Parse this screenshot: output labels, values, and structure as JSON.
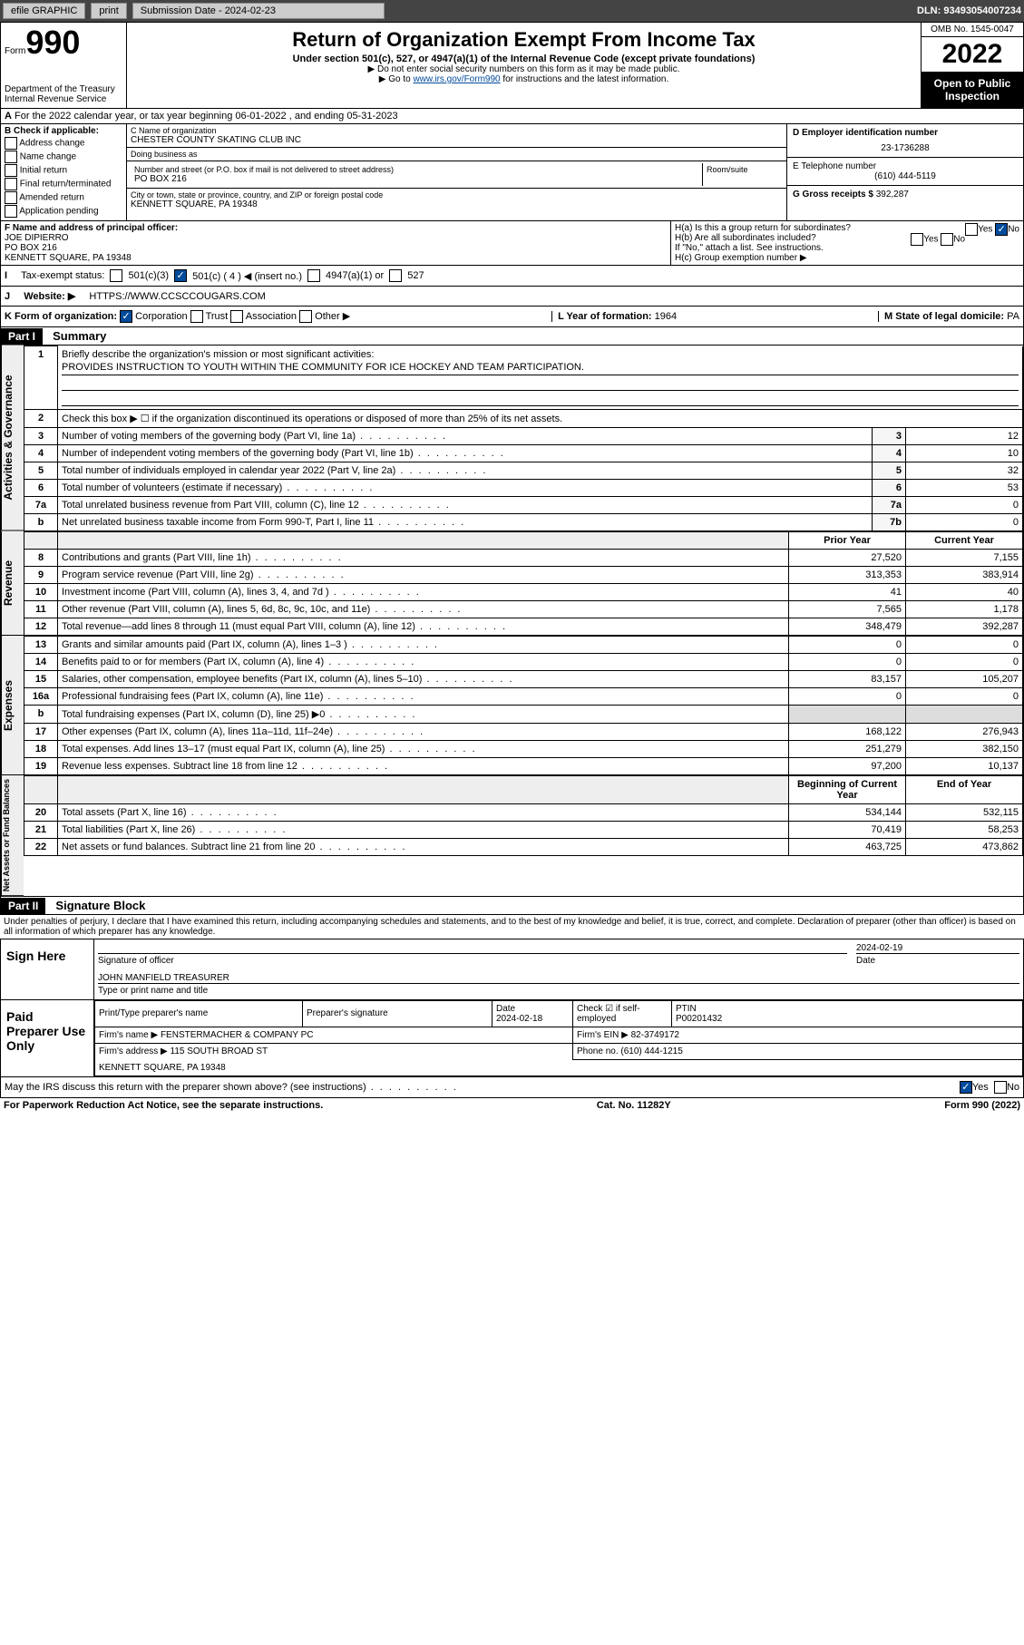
{
  "topbar": {
    "efile": "efile GRAPHIC",
    "print": "print",
    "sub_label": "Submission Date - 2024-02-23",
    "dln": "DLN: 93493054007234"
  },
  "header": {
    "form": "Form",
    "form_no": "990",
    "dept": "Department of the Treasury\nInternal Revenue Service",
    "title": "Return of Organization Exempt From Income Tax",
    "subtitle": "Under section 501(c), 527, or 4947(a)(1) of the Internal Revenue Code (except private foundations)",
    "note1": "▶ Do not enter social security numbers on this form as it may be made public.",
    "note2_pre": "▶ Go to ",
    "note2_link": "www.irs.gov/Form990",
    "note2_post": " for instructions and the latest information.",
    "omb": "OMB No. 1545-0047",
    "year": "2022",
    "open": "Open to Public Inspection"
  },
  "lineA": "For the 2022 calendar year, or tax year beginning 06-01-2022   , and ending 05-31-2023",
  "boxB": {
    "title": "B Check if applicable:",
    "items": [
      "Address change",
      "Name change",
      "Initial return",
      "Final return/terminated",
      "Amended return",
      "Application pending"
    ]
  },
  "boxC": {
    "name_label": "C Name of organization",
    "name": "CHESTER COUNTY SKATING CLUB INC",
    "dba_label": "Doing business as",
    "dba": "",
    "street_label": "Number and street (or P.O. box if mail is not delivered to street address)",
    "room_label": "Room/suite",
    "street": "PO BOX 216",
    "city_label": "City or town, state or province, country, and ZIP or foreign postal code",
    "city": "KENNETT SQUARE, PA  19348"
  },
  "boxD": {
    "label": "D Employer identification number",
    "value": "23-1736288"
  },
  "boxE": {
    "label": "E Telephone number",
    "value": "(610) 444-5119"
  },
  "boxG": {
    "label": "G Gross receipts $",
    "value": "392,287"
  },
  "boxF": {
    "label": "F Name and address of principal officer:",
    "name": "JOE DIPIERRO",
    "street": "PO BOX 216",
    "city": "KENNETT SQUARE, PA  19348"
  },
  "boxH": {
    "ha": "H(a)  Is this a group return for subordinates?",
    "hb": "H(b)  Are all subordinates included?",
    "hb_note": "If \"No,\" attach a list. See instructions.",
    "hc": "H(c)  Group exemption number ▶"
  },
  "yesno": {
    "yes": "Yes",
    "no": "No"
  },
  "boxI": {
    "label": "Tax-exempt status:",
    "opts": [
      "501(c)(3)",
      "501(c) ( 4 ) ◀ (insert no.)",
      "4947(a)(1) or",
      "527"
    ]
  },
  "boxJ": {
    "label": "Website: ▶",
    "value": "HTTPS://WWW.CCSCCOUGARS.COM"
  },
  "boxK": {
    "label": "K Form of organization:",
    "opts": [
      "Corporation",
      "Trust",
      "Association",
      "Other ▶"
    ]
  },
  "boxL": {
    "label": "L Year of formation:",
    "value": "1964"
  },
  "boxM": {
    "label": "M State of legal domicile:",
    "value": "PA"
  },
  "part1": {
    "head": "Part I",
    "title": "Summary",
    "line1_label": "Briefly describe the organization's mission or most significant activities:",
    "line1_value": "PROVIDES INSTRUCTION TO YOUTH WITHIN THE COMMUNITY FOR ICE HOCKEY AND TEAM PARTICIPATION.",
    "line2": "Check this box ▶ ☐  if the organization discontinued its operations or disposed of more than 25% of its net assets."
  },
  "sidetabs": {
    "gov": "Activities & Governance",
    "rev": "Revenue",
    "exp": "Expenses",
    "net": "Net Assets or Fund Balances"
  },
  "gov_rows": [
    {
      "n": "3",
      "label": "Number of voting members of the governing body (Part VI, line 1a)",
      "cell": "3",
      "val": "12"
    },
    {
      "n": "4",
      "label": "Number of independent voting members of the governing body (Part VI, line 1b)",
      "cell": "4",
      "val": "10"
    },
    {
      "n": "5",
      "label": "Total number of individuals employed in calendar year 2022 (Part V, line 2a)",
      "cell": "5",
      "val": "32"
    },
    {
      "n": "6",
      "label": "Total number of volunteers (estimate if necessary)",
      "cell": "6",
      "val": "53"
    },
    {
      "n": "7a",
      "label": "Total unrelated business revenue from Part VIII, column (C), line 12",
      "cell": "7a",
      "val": "0"
    },
    {
      "n": "b",
      "label": "Net unrelated business taxable income from Form 990-T, Part I, line 11",
      "cell": "7b",
      "val": "0"
    }
  ],
  "col_headers": {
    "prior": "Prior Year",
    "current": "Current Year",
    "beg": "Beginning of Current Year",
    "end": "End of Year"
  },
  "rev_rows": [
    {
      "n": "8",
      "label": "Contributions and grants (Part VIII, line 1h)",
      "prior": "27,520",
      "cur": "7,155"
    },
    {
      "n": "9",
      "label": "Program service revenue (Part VIII, line 2g)",
      "prior": "313,353",
      "cur": "383,914"
    },
    {
      "n": "10",
      "label": "Investment income (Part VIII, column (A), lines 3, 4, and 7d )",
      "prior": "41",
      "cur": "40"
    },
    {
      "n": "11",
      "label": "Other revenue (Part VIII, column (A), lines 5, 6d, 8c, 9c, 10c, and 11e)",
      "prior": "7,565",
      "cur": "1,178"
    },
    {
      "n": "12",
      "label": "Total revenue—add lines 8 through 11 (must equal Part VIII, column (A), line 12)",
      "prior": "348,479",
      "cur": "392,287"
    }
  ],
  "exp_rows": [
    {
      "n": "13",
      "label": "Grants and similar amounts paid (Part IX, column (A), lines 1–3 )",
      "prior": "0",
      "cur": "0"
    },
    {
      "n": "14",
      "label": "Benefits paid to or for members (Part IX, column (A), line 4)",
      "prior": "0",
      "cur": "0"
    },
    {
      "n": "15",
      "label": "Salaries, other compensation, employee benefits (Part IX, column (A), lines 5–10)",
      "prior": "83,157",
      "cur": "105,207"
    },
    {
      "n": "16a",
      "label": "Professional fundraising fees (Part IX, column (A), line 11e)",
      "prior": "0",
      "cur": "0"
    },
    {
      "n": "b",
      "label": "Total fundraising expenses (Part IX, column (D), line 25) ▶0",
      "prior": "",
      "cur": ""
    },
    {
      "n": "17",
      "label": "Other expenses (Part IX, column (A), lines 11a–11d, 11f–24e)",
      "prior": "168,122",
      "cur": "276,943"
    },
    {
      "n": "18",
      "label": "Total expenses. Add lines 13–17 (must equal Part IX, column (A), line 25)",
      "prior": "251,279",
      "cur": "382,150"
    },
    {
      "n": "19",
      "label": "Revenue less expenses. Subtract line 18 from line 12",
      "prior": "97,200",
      "cur": "10,137"
    }
  ],
  "net_rows": [
    {
      "n": "20",
      "label": "Total assets (Part X, line 16)",
      "prior": "534,144",
      "cur": "532,115"
    },
    {
      "n": "21",
      "label": "Total liabilities (Part X, line 26)",
      "prior": "70,419",
      "cur": "58,253"
    },
    {
      "n": "22",
      "label": "Net assets or fund balances. Subtract line 21 from line 20",
      "prior": "463,725",
      "cur": "473,862"
    }
  ],
  "part2": {
    "head": "Part II",
    "title": "Signature Block",
    "declare": "Under penalties of perjury, I declare that I have examined this return, including accompanying schedules and statements, and to the best of my knowledge and belief, it is true, correct, and complete. Declaration of preparer (other than officer) is based on all information of which preparer has any knowledge."
  },
  "sign": {
    "here": "Sign Here",
    "sig_label": "Signature of officer",
    "date": "2024-02-19",
    "date_label": "Date",
    "name": "JOHN MANFIELD TREASURER",
    "name_label": "Type or print name and title"
  },
  "prep": {
    "label": "Paid Preparer Use Only",
    "cols": {
      "name": "Print/Type preparer's name",
      "sig": "Preparer's signature",
      "date": "Date",
      "date_val": "2024-02-18",
      "check": "Check ☑ if self-employed",
      "ptin": "PTIN",
      "ptin_val": "P00201432"
    },
    "firm_name_label": "Firm's name    ▶",
    "firm_name": "FENSTERMACHER & COMPANY PC",
    "firm_ein_label": "Firm's EIN ▶",
    "firm_ein": "82-3749172",
    "firm_addr_label": "Firm's address ▶",
    "firm_addr1": "115 SOUTH BROAD ST",
    "firm_addr2": "KENNETT SQUARE, PA  19348",
    "phone_label": "Phone no.",
    "phone": "(610) 444-1215"
  },
  "may_irs": "May the IRS discuss this return with the preparer shown above? (see instructions)",
  "footer": {
    "pra": "For Paperwork Reduction Act Notice, see the separate instructions.",
    "cat": "Cat. No. 11282Y",
    "form": "Form 990 (2022)"
  }
}
